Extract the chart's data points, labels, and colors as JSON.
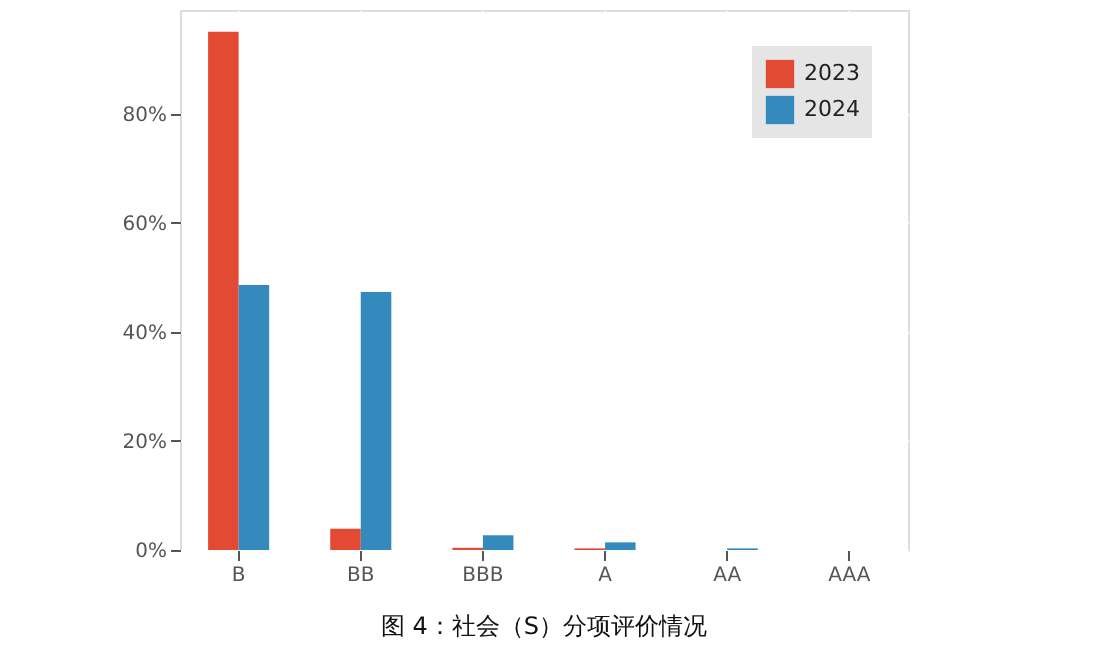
{
  "chart_data": {
    "type": "bar",
    "title": "图 4：社会（S）分项评价情况",
    "categories": [
      "B",
      "BB",
      "BBB",
      "A",
      "AA",
      "AAA"
    ],
    "series": [
      {
        "name": "2023",
        "color": "#e24a33",
        "values": [
          95,
          3.9,
          0.4,
          0.3,
          0,
          0
        ]
      },
      {
        "name": "2024",
        "color": "#348abd",
        "values": [
          48.6,
          47.3,
          2.7,
          1.4,
          0.3,
          0
        ]
      }
    ],
    "ylim": [
      0,
      99
    ],
    "yticks": [
      {
        "value": 0,
        "label": "0%"
      },
      {
        "value": 20,
        "label": "20%"
      },
      {
        "value": 40,
        "label": "40%"
      },
      {
        "value": 60,
        "label": "60%"
      },
      {
        "value": 80,
        "label": "80%"
      }
    ],
    "grid": true,
    "legend": "top right"
  }
}
